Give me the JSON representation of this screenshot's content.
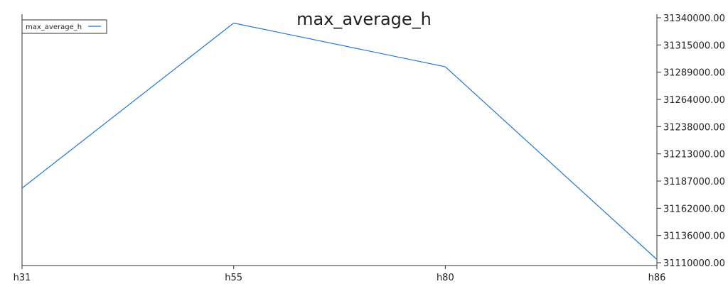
{
  "chart_data": {
    "type": "line",
    "title": "max_average_h",
    "xlabel": "",
    "ylabel": "",
    "categories": [
      "h31",
      "h55",
      "h80",
      "h86"
    ],
    "series": [
      {
        "name": "max_average_h",
        "color": "#1f77d4",
        "values": [
          31180000,
          31335000,
          31294000,
          31113000
        ]
      }
    ],
    "ylim": [
      31110000,
      31340000
    ],
    "y_ticks": [
      "31340000.00",
      "31315000.00",
      "31289000.00",
      "31264000.00",
      "31238000.00",
      "31213000.00",
      "31187000.00",
      "31162000.00",
      "31136000.00",
      "31110000.00"
    ],
    "y_axis_side": "right",
    "grid": false,
    "legend_position": "top-left"
  }
}
